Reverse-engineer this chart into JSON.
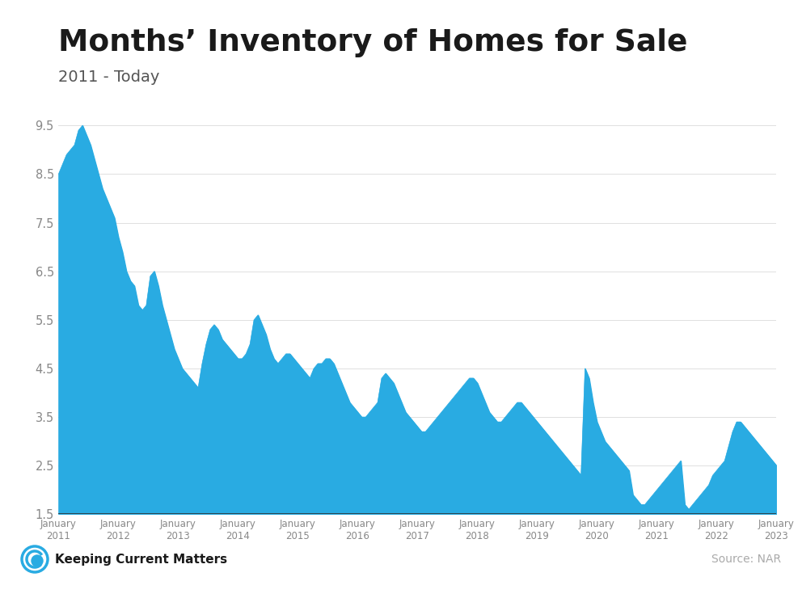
{
  "title": "Months’ Inventory of Homes for Sale",
  "subtitle": "2011 - Today",
  "source": "Source: NAR",
  "fill_color": "#29ABE2",
  "background_color": "#FFFFFF",
  "top_bar_color": "#29ABE2",
  "ylim": [
    1.5,
    9.7
  ],
  "yticks": [
    1.5,
    2.5,
    3.5,
    4.5,
    5.5,
    6.5,
    7.5,
    8.5,
    9.5
  ],
  "x_labels": [
    "January\n2011",
    "January\n2012",
    "January\n2013",
    "January\n2014",
    "January\n2015",
    "January\n2016",
    "January\n2017",
    "January\n2018",
    "January\n2019",
    "January\n2020",
    "January\n2021",
    "January\n2022",
    "January\n2023"
  ],
  "data": [
    8.5,
    8.7,
    8.9,
    9.0,
    9.1,
    9.4,
    9.5,
    9.3,
    9.1,
    8.8,
    8.5,
    8.2,
    8.0,
    7.8,
    7.6,
    7.2,
    6.9,
    6.5,
    6.3,
    6.2,
    5.8,
    5.7,
    5.8,
    6.4,
    6.5,
    6.2,
    5.8,
    5.5,
    5.2,
    4.9,
    4.7,
    4.5,
    4.4,
    4.3,
    4.2,
    4.1,
    4.6,
    5.0,
    5.3,
    5.4,
    5.3,
    5.1,
    5.0,
    4.9,
    4.8,
    4.7,
    4.7,
    4.8,
    5.0,
    5.5,
    5.6,
    5.4,
    5.2,
    4.9,
    4.7,
    4.6,
    4.7,
    4.8,
    4.8,
    4.7,
    4.6,
    4.5,
    4.4,
    4.3,
    4.5,
    4.6,
    4.6,
    4.7,
    4.7,
    4.6,
    4.4,
    4.2,
    4.0,
    3.8,
    3.7,
    3.6,
    3.5,
    3.5,
    3.6,
    3.7,
    3.8,
    4.3,
    4.4,
    4.3,
    4.2,
    4.0,
    3.8,
    3.6,
    3.5,
    3.4,
    3.3,
    3.2,
    3.2,
    3.3,
    3.4,
    3.5,
    3.6,
    3.7,
    3.8,
    3.9,
    4.0,
    4.1,
    4.2,
    4.3,
    4.3,
    4.2,
    4.0,
    3.8,
    3.6,
    3.5,
    3.4,
    3.4,
    3.5,
    3.6,
    3.7,
    3.8,
    3.8,
    3.7,
    3.6,
    3.5,
    3.4,
    3.3,
    3.2,
    3.1,
    3.0,
    2.9,
    2.8,
    2.7,
    2.6,
    2.5,
    2.4,
    2.3,
    4.5,
    4.3,
    3.8,
    3.4,
    3.2,
    3.0,
    2.9,
    2.8,
    2.7,
    2.6,
    2.5,
    2.4,
    1.9,
    1.8,
    1.7,
    1.7,
    1.8,
    1.9,
    2.0,
    2.1,
    2.2,
    2.3,
    2.4,
    2.5,
    2.6,
    1.7,
    1.6,
    1.7,
    1.8,
    1.9,
    2.0,
    2.1,
    2.3,
    2.4,
    2.5,
    2.6,
    2.9,
    3.2,
    3.4,
    3.4,
    3.3,
    3.2,
    3.1,
    3.0,
    2.9,
    2.8,
    2.7,
    2.6,
    2.5
  ]
}
